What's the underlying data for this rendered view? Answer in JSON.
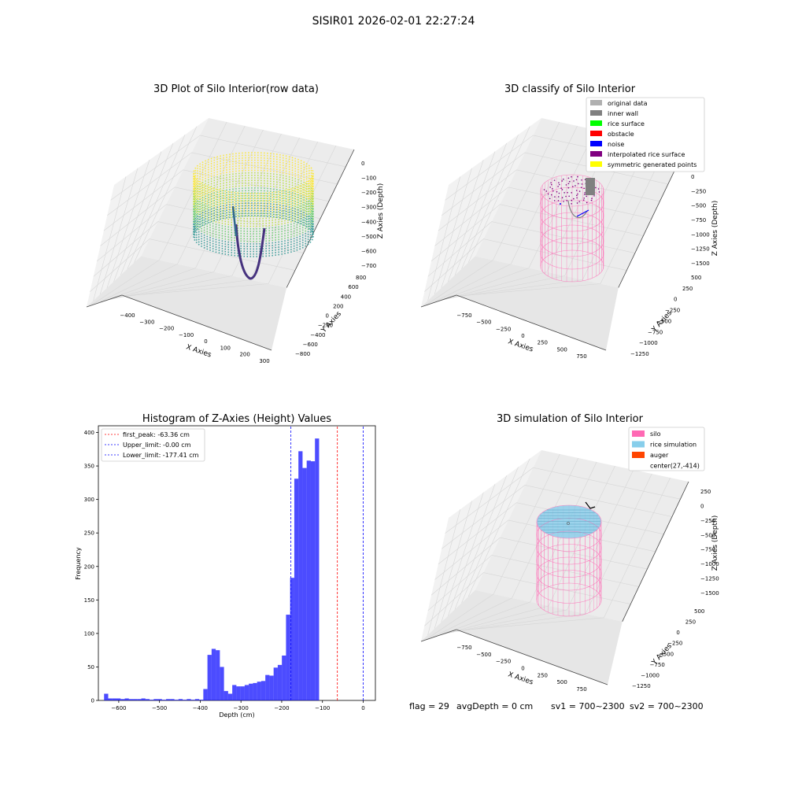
{
  "suptitle": "SISIR01 2026-02-01 22:27:24",
  "footer": {
    "flag": "flag = 29",
    "avg": "avgDepth = 0 cm",
    "sv1": "sv1 = 700~2300",
    "sv2": "sv2 = 700~2300"
  },
  "colors": {
    "hist_bar": "#0000ff",
    "peak_line": "#ff0000",
    "limit_line": "#0000ff",
    "pane_fill": "#f2f2f2",
    "grid": "#d6d6d6",
    "silo": "#ff69b4",
    "rice_simulation": "#87ceeb",
    "auger": "#ff4500"
  },
  "chart_data": [
    {
      "type": "scatter3d",
      "title": "3D Plot of Silo Interior(row data)",
      "xlabel": "X Axies",
      "ylabel": "Y Axies",
      "zlabel": "Z Axies (Depth)",
      "xticks": [
        "−400",
        "−300",
        "−200",
        "−100",
        "0",
        "100",
        "200",
        "300"
      ],
      "yticks": [
        "−800",
        "−600",
        "−400",
        "−200",
        "0",
        "200",
        "400",
        "600",
        "800"
      ],
      "zticks": [
        "0",
        "−100",
        "−200",
        "−300",
        "−400",
        "−500",
        "−600",
        "−700"
      ],
      "xlim": [
        -420,
        310
      ],
      "ylim": [
        -820,
        820
      ],
      "zlim": [
        -720,
        10
      ],
      "colormap": "viridis (by depth)"
    },
    {
      "type": "scatter3d",
      "title": "3D classify of Silo Interior",
      "xlabel": "X Axies",
      "ylabel": "Y Axies",
      "zlabel": "Z Axies (Depth)",
      "xticks": [
        "−750",
        "−500",
        "−250",
        "0",
        "250",
        "500",
        "750"
      ],
      "yticks": [
        "−1250",
        "−1000",
        "−750",
        "−500",
        "−250",
        "0",
        "250",
        "500"
      ],
      "zticks": [
        "0",
        "−250",
        "−500",
        "−750",
        "−1000",
        "−1250",
        "−1500"
      ],
      "legend_position": "top-right",
      "legend": [
        {
          "label": "original data",
          "color": "#b0b0b0"
        },
        {
          "label": "inner wall",
          "color": "#808080"
        },
        {
          "label": "rice surface",
          "color": "#00ff00"
        },
        {
          "label": "obstacle",
          "color": "#ff0000"
        },
        {
          "label": "noise",
          "color": "#0000ff"
        },
        {
          "label": "interpolated rice surface",
          "color": "#800080"
        },
        {
          "label": "symmetric generated points",
          "color": "#ffff00"
        }
      ]
    },
    {
      "type": "bar",
      "title": "Histogram of Z-Axies (Height) Values",
      "xlabel": "Depth (cm)",
      "ylabel": "Frequency",
      "xlim": [
        -650,
        30
      ],
      "ylim": [
        0,
        410
      ],
      "xticks": [
        -600,
        -500,
        -400,
        -300,
        -200,
        -100,
        0
      ],
      "yticks": [
        0,
        50,
        100,
        150,
        200,
        250,
        300,
        350,
        400
      ],
      "bin_width": 10.15,
      "bin_start": -636,
      "values": [
        10,
        3,
        3,
        3,
        2,
        3,
        2,
        2,
        2,
        3,
        2,
        1,
        2,
        2,
        1,
        2,
        2,
        1,
        2,
        1,
        2,
        1,
        2,
        1,
        17,
        68,
        77,
        75,
        50,
        14,
        10,
        23,
        21,
        21,
        23,
        25,
        26,
        28,
        29,
        38,
        37,
        49,
        53,
        67,
        128,
        183,
        331,
        372,
        347,
        358,
        357,
        391
      ],
      "lines": [
        {
          "label": "first_peak: -63.36 cm",
          "x": -63.36,
          "color": "#ff0000"
        },
        {
          "label": "Upper_limit: -0.00 cm",
          "x": 0.0,
          "color": "#0000ff"
        },
        {
          "label": "Lower_limit: -177.41 cm",
          "x": -177.41,
          "color": "#0000ff"
        }
      ],
      "legend_position": "top-left"
    },
    {
      "type": "surface3d",
      "title": "3D simulation of Silo Interior",
      "xlabel": "X Axies",
      "ylabel": "Y Axies",
      "zlabel": "Z Axies (Depth)",
      "xticks": [
        "−750",
        "−500",
        "−250",
        "0",
        "250",
        "500",
        "750"
      ],
      "yticks": [
        "−1250",
        "−1000",
        "−750",
        "−500",
        "−250",
        "0",
        "250",
        "500"
      ],
      "zticks": [
        "250",
        "0",
        "−250",
        "−500",
        "−750",
        "−1000",
        "−1250",
        "−1500"
      ],
      "legend_position": "top-right",
      "legend": [
        {
          "label": "silo",
          "color": "#ff69b4"
        },
        {
          "label": "rice simulation",
          "color": "#87ceeb"
        },
        {
          "label": "auger",
          "color": "#ff4500"
        },
        {
          "label": "center(27,-414)",
          "color": ""
        }
      ]
    }
  ]
}
